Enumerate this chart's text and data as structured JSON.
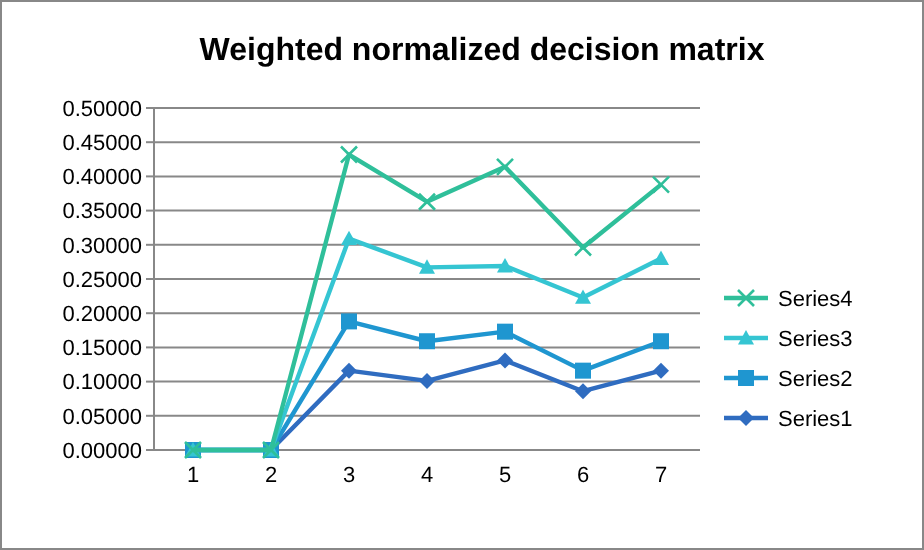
{
  "chart_data": {
    "type": "line",
    "title": "Weighted normalized decision matrix",
    "categories": [
      "1",
      "2",
      "3",
      "4",
      "5",
      "6",
      "7"
    ],
    "series": [
      {
        "name": "Series1",
        "color": "#2f6cc0",
        "marker": "diamond",
        "values": [
          0,
          0,
          0.116,
          0.101,
          0.131,
          0.086,
          0.116
        ]
      },
      {
        "name": "Series2",
        "color": "#1f96d0",
        "marker": "square",
        "values": [
          0,
          0,
          0.188,
          0.159,
          0.173,
          0.116,
          0.159
        ]
      },
      {
        "name": "Series3",
        "color": "#35c5d2",
        "marker": "triangle",
        "values": [
          0,
          0,
          0.309,
          0.267,
          0.269,
          0.223,
          0.28
        ]
      },
      {
        "name": "Series4",
        "color": "#2fbf9a",
        "marker": "cross",
        "values": [
          0,
          0,
          0.432,
          0.363,
          0.414,
          0.296,
          0.388
        ]
      }
    ],
    "ylim": [
      0,
      0.5
    ],
    "yticks": [
      {
        "value": 0,
        "label": "0.00000"
      },
      {
        "value": 0.05,
        "label": "0.05000"
      },
      {
        "value": 0.1,
        "label": "0.10000"
      },
      {
        "value": 0.15,
        "label": "0.15000"
      },
      {
        "value": 0.2,
        "label": "0.20000"
      },
      {
        "value": 0.25,
        "label": "0.25000"
      },
      {
        "value": 0.3,
        "label": "0.30000"
      },
      {
        "value": 0.35,
        "label": "0.35000"
      },
      {
        "value": 0.4,
        "label": "0.40000"
      },
      {
        "value": 0.45,
        "label": "0.45000"
      },
      {
        "value": 0.5,
        "label": "0.50000"
      }
    ],
    "grid": "y",
    "legend": "right",
    "line_style": "solid"
  }
}
